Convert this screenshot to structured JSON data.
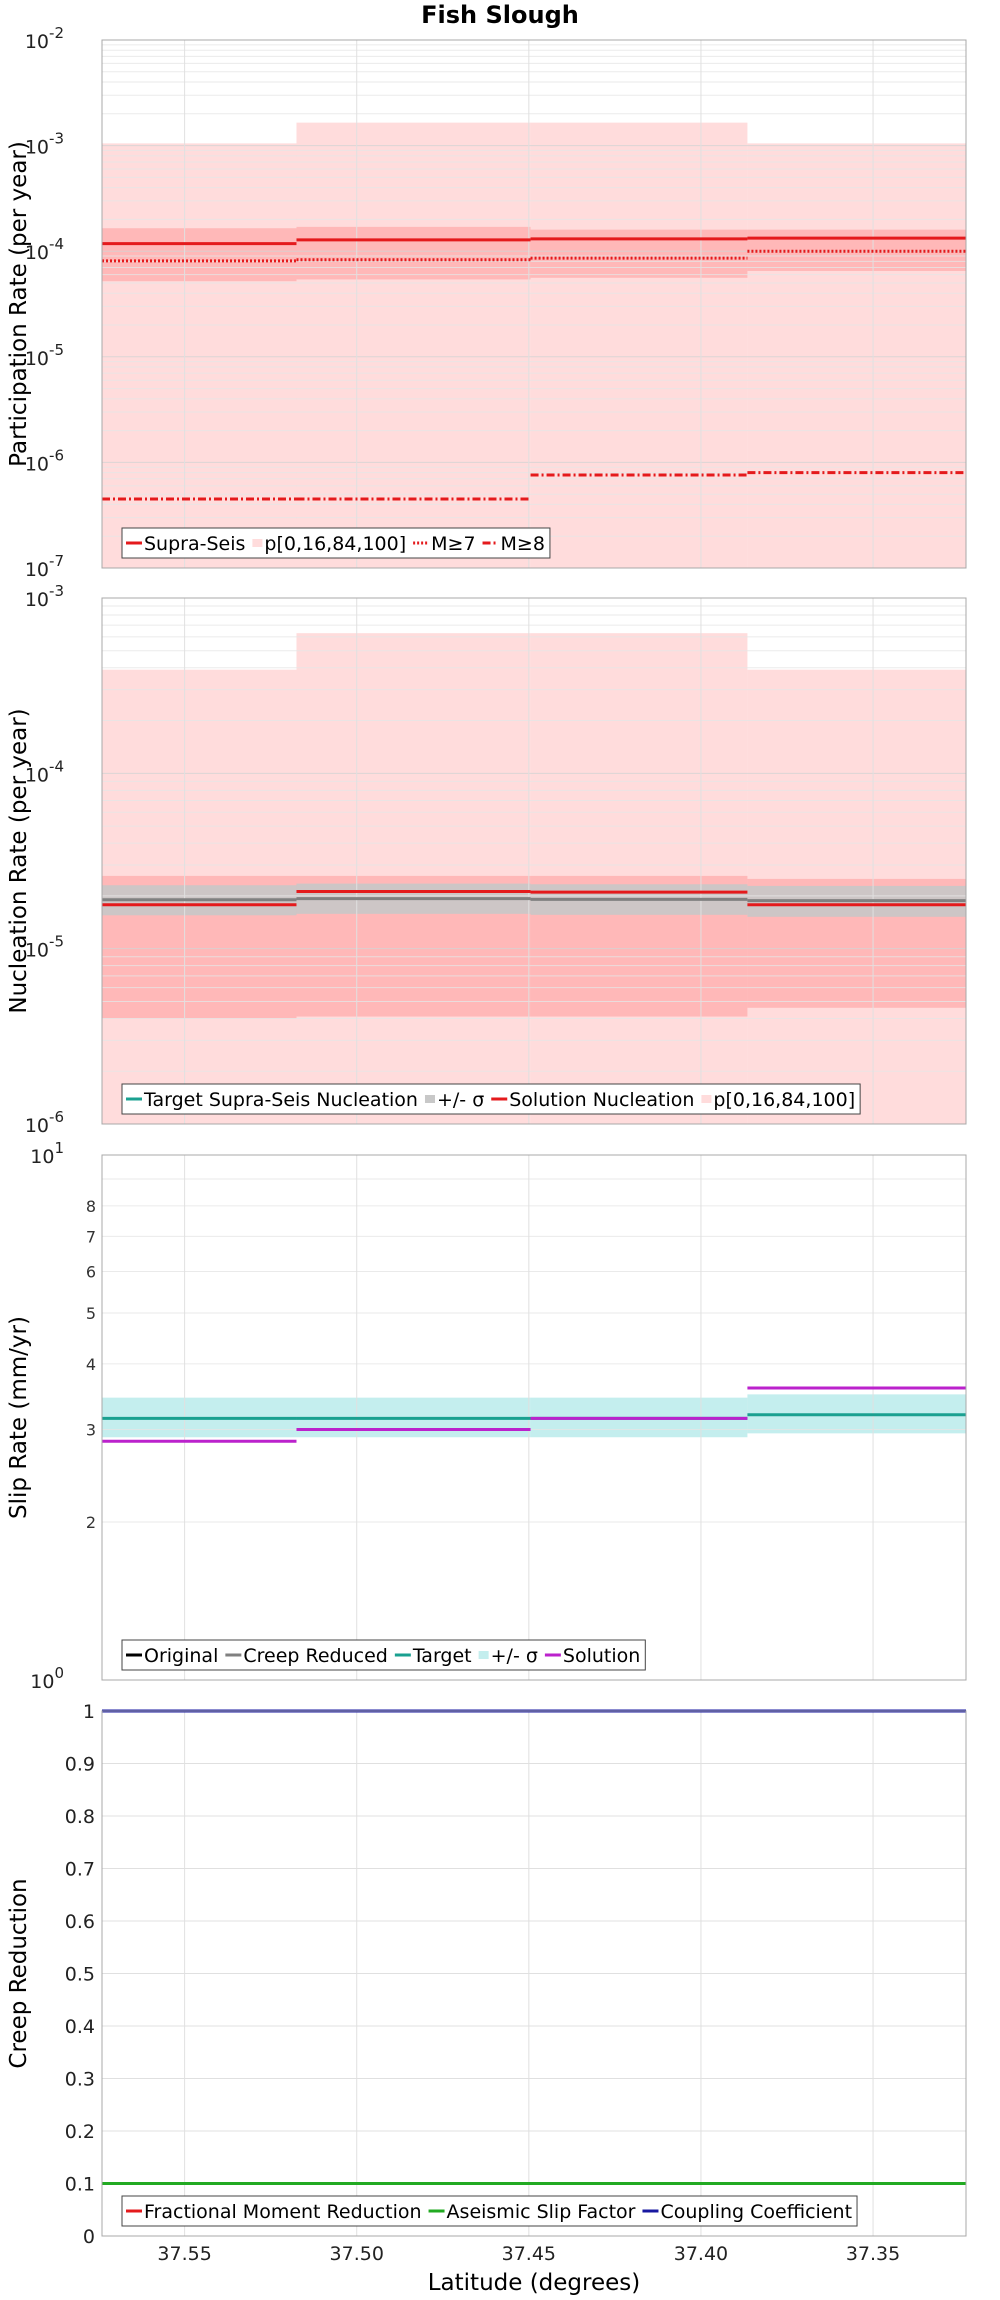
{
  "title": "Fish Slough",
  "xlabel": "Latitude (degrees)",
  "x_ticks": [
    "37.55",
    "37.50",
    "37.45",
    "37.40",
    "37.35"
  ],
  "colors": {
    "red": "#e41a1c",
    "pink_band": "#ffdcdc",
    "pink_inner": "#ffb8b8",
    "gray_band": "#c8c8c8",
    "gray_line": "#808080",
    "teal_line": "#1aa090",
    "teal_band": "#c4eeee",
    "purple": "#bb22cc",
    "black": "#000000",
    "green": "#22aa22",
    "blue": "#1818a0"
  },
  "chart_data": [
    {
      "type": "line",
      "title": "Fish Slough",
      "ylabel": "Participation Rate (per year)",
      "xlabel": "",
      "yscale": "log",
      "xlim": [
        37.574,
        37.323
      ],
      "ylim": [
        1e-07,
        0.01
      ],
      "grid": true,
      "legend_position": "bottom-left",
      "y_ticks": [
        {
          "base": "10",
          "exp": "-7"
        },
        {
          "base": "10",
          "exp": "-6"
        },
        {
          "base": "10",
          "exp": "-5"
        },
        {
          "base": "10",
          "exp": "-4"
        },
        {
          "base": "10",
          "exp": "-3"
        },
        {
          "base": "10",
          "exp": "-2"
        }
      ],
      "legend": [
        {
          "label": "Supra-Seis",
          "style": "solid",
          "color": "#e41a1c"
        },
        {
          "label": "p[0,16,84,100]",
          "style": "band",
          "color": "#ffdcdc"
        },
        {
          "label": "M≥7",
          "style": "dotted",
          "color": "#e41a1c"
        },
        {
          "label": "M≥8",
          "style": "dashdot",
          "color": "#e41a1c"
        }
      ],
      "bins": [
        [
          37.574,
          37.5175
        ],
        [
          37.5175,
          37.4495
        ],
        [
          37.4495,
          37.3865
        ],
        [
          37.3865,
          37.323
        ]
      ],
      "bands": [
        {
          "name": "p[0,100]",
          "color": "#ffdcdc",
          "low": [
            1e-07,
            1e-07,
            1e-07,
            1e-07
          ],
          "high": [
            0.00105,
            0.00165,
            0.00165,
            0.00105
          ]
        },
        {
          "name": "p[16,84]",
          "color": "#ffb8b8",
          "low": [
            5.2e-05,
            5.4e-05,
            5.6e-05,
            6.5e-05
          ],
          "high": [
            0.000165,
            0.00017,
            0.00016,
            0.00016
          ]
        }
      ],
      "series": [
        {
          "name": "Supra-Seis",
          "style": "solid",
          "color": "#e41a1c",
          "values": [
            0.000118,
            0.000128,
            0.000131,
            0.000133
          ]
        },
        {
          "name": "M≥7",
          "style": "dotted",
          "color": "#e41a1c",
          "values": [
            8.1e-05,
            8.3e-05,
            8.6e-05,
            0.0001
          ]
        },
        {
          "name": "M≥8",
          "style": "dashdot",
          "color": "#e41a1c",
          "values": [
            4.5e-07,
            4.5e-07,
            7.6e-07,
            8e-07
          ]
        }
      ]
    },
    {
      "type": "line",
      "title": "",
      "ylabel": "Nucleation Rate (per year)",
      "xlabel": "",
      "yscale": "log",
      "xlim": [
        37.574,
        37.323
      ],
      "ylim": [
        1e-06,
        0.001
      ],
      "grid": true,
      "legend_position": "bottom-left",
      "y_ticks": [
        {
          "base": "10",
          "exp": "-6"
        },
        {
          "base": "10",
          "exp": "-5"
        },
        {
          "base": "10",
          "exp": "-4"
        },
        {
          "base": "10",
          "exp": "-3"
        }
      ],
      "legend": [
        {
          "label": "Target Supra-Seis Nucleation",
          "style": "solid",
          "color": "#1aa090"
        },
        {
          "label": "+/- σ",
          "style": "band",
          "color": "#c8c8c8"
        },
        {
          "label": "Solution Nucleation",
          "style": "solid",
          "color": "#e41a1c"
        },
        {
          "label": "p[0,16,84,100]",
          "style": "band",
          "color": "#ffdcdc"
        }
      ],
      "bins": [
        [
          37.574,
          37.5175
        ],
        [
          37.5175,
          37.4495
        ],
        [
          37.4495,
          37.3865
        ],
        [
          37.3865,
          37.323
        ]
      ],
      "bands": [
        {
          "name": "p[0,100]",
          "color": "#ffdcdc",
          "low": [
            1e-06,
            1e-06,
            1e-06,
            1e-06
          ],
          "high": [
            0.00039,
            0.00063,
            0.00063,
            0.00039
          ]
        },
        {
          "name": "p[16,84]",
          "color": "#ffb8b8",
          "low": [
            4e-06,
            4.1e-06,
            4.1e-06,
            4.6e-06
          ],
          "high": [
            2.6e-05,
            2.6e-05,
            2.6e-05,
            2.5e-05
          ]
        },
        {
          "name": "+/- σ",
          "color": "#c8c8c8",
          "low": [
            1.55e-05,
            1.58e-05,
            1.56e-05,
            1.52e-05
          ],
          "high": [
            2.3e-05,
            2.35e-05,
            2.33e-05,
            2.28e-05
          ]
        }
      ],
      "series": [
        {
          "name": "Target Supra-Seis Nucleation",
          "style": "solid",
          "color": "#808080",
          "values": [
            1.9e-05,
            1.93e-05,
            1.91e-05,
            1.88e-05
          ]
        },
        {
          "name": "Solution Nucleation",
          "style": "solid",
          "color": "#e41a1c",
          "values": [
            1.78e-05,
            2.12e-05,
            2.1e-05,
            1.78e-05
          ]
        }
      ]
    },
    {
      "type": "line",
      "title": "",
      "ylabel": "Slip Rate (mm/yr)",
      "xlabel": "",
      "yscale": "log",
      "xlim": [
        37.574,
        37.323
      ],
      "ylim": [
        1,
        10
      ],
      "grid": true,
      "legend_position": "bottom-left",
      "y_ticks": [
        {
          "base": "10",
          "exp": "1"
        },
        {
          "base": "10",
          "exp": "0"
        }
      ],
      "y_minor_ticks": [
        "2",
        "3",
        "4",
        "5",
        "6",
        "7",
        "8"
      ],
      "legend": [
        {
          "label": "Original",
          "style": "solid",
          "color": "#000000"
        },
        {
          "label": "Creep Reduced",
          "style": "solid",
          "color": "#808080"
        },
        {
          "label": "Target",
          "style": "solid",
          "color": "#1aa090"
        },
        {
          "label": "+/- σ",
          "style": "band",
          "color": "#c4eeee"
        },
        {
          "label": "Solution",
          "style": "solid",
          "color": "#bb22cc"
        }
      ],
      "bins": [
        [
          37.574,
          37.5175
        ],
        [
          37.5175,
          37.4495
        ],
        [
          37.4495,
          37.3865
        ],
        [
          37.3865,
          37.323
        ]
      ],
      "bands": [
        {
          "name": "+/- σ",
          "color": "#c4eeee",
          "low": [
            2.9,
            2.9,
            2.9,
            2.95
          ],
          "high": [
            3.45,
            3.45,
            3.45,
            3.5
          ]
        }
      ],
      "series": [
        {
          "name": "Target",
          "style": "solid",
          "color": "#1aa090",
          "values": [
            3.15,
            3.15,
            3.15,
            3.2
          ]
        },
        {
          "name": "Solution",
          "style": "solid",
          "color": "#bb22cc",
          "values": [
            2.85,
            3.0,
            3.15,
            3.6
          ]
        }
      ]
    },
    {
      "type": "line",
      "title": "",
      "ylabel": "Creep Reduction",
      "xlabel": "Latitude (degrees)",
      "yscale": "linear",
      "xlim": [
        37.574,
        37.323
      ],
      "ylim": [
        0,
        1
      ],
      "grid": true,
      "legend_position": "bottom-left",
      "y_ticks": [
        "0",
        "0.1",
        "0.2",
        "0.3",
        "0.4",
        "0.5",
        "0.6",
        "0.7",
        "0.8",
        "0.9",
        "1"
      ],
      "legend": [
        {
          "label": "Fractional Moment Reduction",
          "style": "solid",
          "color": "#e41a1c"
        },
        {
          "label": "Aseismic Slip Factor",
          "style": "solid",
          "color": "#22aa22"
        },
        {
          "label": "Coupling Coefficient",
          "style": "solid",
          "color": "#1818a0"
        }
      ],
      "bins": [
        [
          37.574,
          37.323
        ]
      ],
      "bands": [],
      "series": [
        {
          "name": "Fractional Moment Reduction",
          "style": "solid",
          "color": "#e41a1c",
          "values": [
            0.1
          ]
        },
        {
          "name": "Aseismic Slip Factor",
          "style": "solid",
          "color": "#22aa22",
          "values": [
            0.1
          ]
        },
        {
          "name": "Coupling Coefficient",
          "style": "solid",
          "color": "#1818a0",
          "values": [
            1.0
          ]
        }
      ]
    }
  ]
}
